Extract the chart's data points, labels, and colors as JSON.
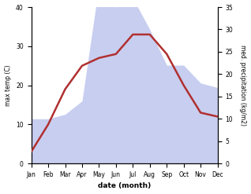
{
  "months": [
    "Jan",
    "Feb",
    "Mar",
    "Apr",
    "May",
    "Jun",
    "Jul",
    "Aug",
    "Sep",
    "Oct",
    "Nov",
    "Dec"
  ],
  "temp": [
    3,
    10,
    19,
    25,
    27,
    28,
    33,
    33,
    28,
    20,
    13,
    12
  ],
  "precip": [
    10,
    10,
    11,
    14,
    40,
    35,
    37,
    30,
    22,
    22,
    18,
    17
  ],
  "temp_color": "#b03030",
  "precip_fill_color": "#c8cef0",
  "xlabel": "date (month)",
  "ylabel_left": "max temp (C)",
  "ylabel_right": "med. precipitation (kg/m2)",
  "ylim_left": [
    0,
    40
  ],
  "ylim_right": [
    0,
    35
  ],
  "yticks_left": [
    0,
    10,
    20,
    30,
    40
  ],
  "yticks_right": [
    0,
    5,
    10,
    15,
    20,
    25,
    30,
    35
  ],
  "bg_color": "#ffffff",
  "line_width": 1.8
}
